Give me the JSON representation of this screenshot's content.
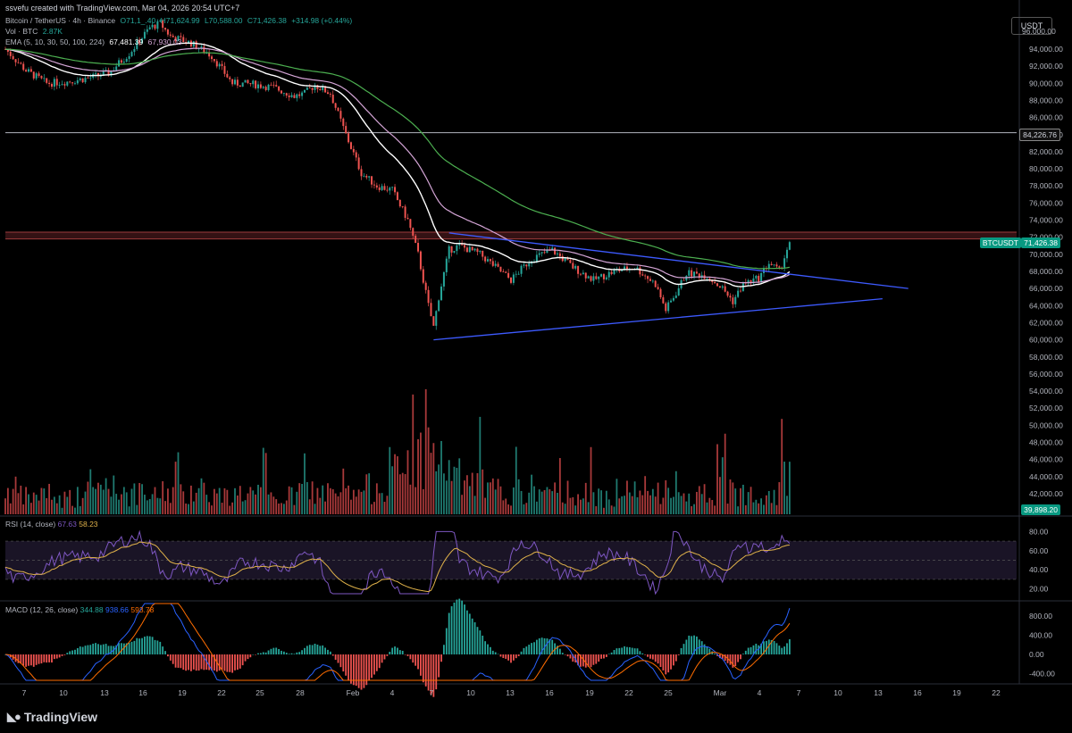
{
  "header": {
    "created_by": "ssvefu created with TradingView.com, Mar 04, 2026 20:54 UTC+7",
    "symbol": "Bitcoin / TetherUS · 4h · Binance",
    "ohlc_o": "O71,1_.40",
    "ohlc_h": "H71,624.99",
    "ohlc_l": "L70,588.00",
    "ohlc_c": "C71,426.38",
    "change": "+314.98 (+0.44%)",
    "vol_label": "Vol · BTC",
    "vol_value": "2.87K",
    "ema_label": "EMA (5, 10, 30, 50, 100, 224)",
    "ema_v1": "67,481.39",
    "ema_v2": "67,930.03"
  },
  "currency_button": "USDT",
  "price_axis": {
    "labels": [
      "94,000.00",
      "92,000.00",
      "90,000.00",
      "88,000.00",
      "86,000.00",
      "84,000.00",
      "82,000.00",
      "80,000.00",
      "78,000.00",
      "76,000.00",
      "74,000.00",
      "72,000.00",
      "70,000.00",
      "68,000.00",
      "66,000.00",
      "64,000.00",
      "62,000.00",
      "60,000.00",
      "58,000.00",
      "56,000.00",
      "54,000.00",
      "52,000.00",
      "50,000.00",
      "48,000.00",
      "46,000.00",
      "44,000.00",
      "42,000.00"
    ],
    "top_partial": "96,000.00",
    "level_tag": "84,226.76",
    "symbol_tag": "BTCUSDT",
    "price_tag": "71,426.38",
    "vol_tag": "39,898.20"
  },
  "rsi": {
    "label": "RSI (14, close)",
    "v1": "67.63",
    "v2": "58.23",
    "axis": [
      "80.00",
      "60.00",
      "40.00",
      "20.00"
    ]
  },
  "macd": {
    "label": "MACD (12, 26, close)",
    "v1": "344.88",
    "v2": "938.66",
    "v3": "593.78",
    "axis": [
      "800.00",
      "400.00",
      "0.00",
      "-400.00"
    ]
  },
  "time_axis": [
    "7",
    "10",
    "13",
    "16",
    "19",
    "22",
    "25",
    "28",
    "Feb",
    "4",
    "7",
    "10",
    "13",
    "16",
    "19",
    "22",
    "25",
    "Mar",
    "4",
    "7",
    "10",
    "13",
    "16",
    "19",
    "22"
  ],
  "brand": "TradingView",
  "chart_data": {
    "type": "candlestick",
    "symbol": "BTCUSDT",
    "interval": "4h",
    "x_axis_ticks": [
      "7",
      "10",
      "13",
      "16",
      "19",
      "22",
      "25",
      "28",
      "Feb",
      "4",
      "7",
      "10",
      "13",
      "16",
      "19",
      "22",
      "25",
      "Mar",
      "4",
      "7",
      "10",
      "13",
      "16",
      "19",
      "22"
    ],
    "y_range": [
      39000,
      97000
    ],
    "close_path": [
      {
        "t": 0,
        "p": 94000
      },
      {
        "t": 4,
        "p": 91500
      },
      {
        "t": 8,
        "p": 90000
      },
      {
        "t": 12,
        "p": 90200
      },
      {
        "t": 16,
        "p": 90600
      },
      {
        "t": 20,
        "p": 91200
      },
      {
        "t": 24,
        "p": 93500
      },
      {
        "t": 28,
        "p": 96500
      },
      {
        "t": 30,
        "p": 97000
      },
      {
        "t": 32,
        "p": 95500
      },
      {
        "t": 36,
        "p": 94700
      },
      {
        "t": 40,
        "p": 93200
      },
      {
        "t": 44,
        "p": 90000
      },
      {
        "t": 48,
        "p": 89900
      },
      {
        "t": 52,
        "p": 89500
      },
      {
        "t": 56,
        "p": 88500
      },
      {
        "t": 58,
        "p": 88800
      },
      {
        "t": 60,
        "p": 89800
      },
      {
        "t": 63,
        "p": 88800
      },
      {
        "t": 66,
        "p": 84000
      },
      {
        "t": 69,
        "p": 79500
      },
      {
        "t": 72,
        "p": 78000
      },
      {
        "t": 75,
        "p": 77500
      },
      {
        "t": 78,
        "p": 74000
      },
      {
        "t": 80,
        "p": 70000
      },
      {
        "t": 82,
        "p": 64000
      },
      {
        "t": 83,
        "p": 61500
      },
      {
        "t": 84,
        "p": 65000
      },
      {
        "t": 86,
        "p": 70500
      },
      {
        "t": 88,
        "p": 71000
      },
      {
        "t": 90,
        "p": 70500
      },
      {
        "t": 92,
        "p": 70000
      },
      {
        "t": 95,
        "p": 68500
      },
      {
        "t": 98,
        "p": 67000
      },
      {
        "t": 102,
        "p": 69500
      },
      {
        "t": 106,
        "p": 70500
      },
      {
        "t": 110,
        "p": 68500
      },
      {
        "t": 114,
        "p": 67000
      },
      {
        "t": 118,
        "p": 68000
      },
      {
        "t": 122,
        "p": 68500
      },
      {
        "t": 126,
        "p": 66500
      },
      {
        "t": 128,
        "p": 63500
      },
      {
        "t": 130,
        "p": 65500
      },
      {
        "t": 132,
        "p": 67800
      },
      {
        "t": 136,
        "p": 67500
      },
      {
        "t": 139,
        "p": 66000
      },
      {
        "t": 141,
        "p": 64500
      },
      {
        "t": 143,
        "p": 66500
      },
      {
        "t": 146,
        "p": 67200
      },
      {
        "t": 148,
        "p": 69000
      },
      {
        "t": 150,
        "p": 68000
      },
      {
        "t": 152,
        "p": 71426
      }
    ],
    "volume_profile": [
      1.2,
      0.9,
      1.0,
      0.8,
      0.9,
      1.1,
      1.5,
      1.3,
      1.0,
      0.9,
      1.2,
      1.0,
      1.4,
      1.0,
      0.9,
      1.1,
      1.0,
      0.8,
      0.9,
      1.2,
      1.1,
      0.9,
      1.0,
      1.3,
      1.6,
      2.0,
      2.8,
      3.3,
      2.5,
      1.8,
      1.5,
      1.2,
      1.0,
      1.1,
      1.3,
      1.0,
      1.2,
      1.0,
      0.9,
      1.0,
      1.1,
      1.2,
      1.0,
      0.9,
      1.0,
      1.1,
      1.2,
      1.1,
      1.3,
      1.2,
      1.8,
      2.4
    ],
    "levels": [
      {
        "price": 84226.76,
        "color": "#b2b5be"
      },
      {
        "price": 72600,
        "color": "#9c3b3b"
      },
      {
        "price": 71800,
        "color": "#9c3b3b"
      }
    ],
    "trendlines": [
      {
        "from": {
          "t": 86,
          "p": 72500
        },
        "to": {
          "t": 175,
          "p": 66000
        }
      },
      {
        "from": {
          "t": 83,
          "p": 60000
        },
        "to": {
          "t": 170,
          "p": 64800
        }
      }
    ],
    "rsi_range": [
      0,
      100
    ],
    "macd_range": [
      -600,
      1000
    ]
  },
  "colors": {
    "up": "#26a69a",
    "down": "#ef5350",
    "ema_white": "#ffffff",
    "ema_pink": "#d4a5d6",
    "ema_green": "#4caf50",
    "trend": "#3d5afe",
    "rsi": "#7e57c2",
    "rsi_ma": "#e0b24a"
  }
}
